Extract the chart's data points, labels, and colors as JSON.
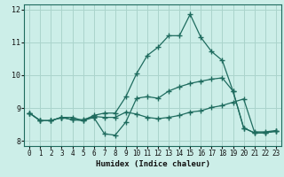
{
  "title": "",
  "xlabel": "Humidex (Indice chaleur)",
  "bg_color": "#cceee8",
  "line_color": "#1e6b5e",
  "grid_color": "#aad4cc",
  "xlim": [
    -0.5,
    23.5
  ],
  "ylim": [
    7.85,
    12.15
  ],
  "xticks": [
    0,
    1,
    2,
    3,
    4,
    5,
    6,
    7,
    8,
    9,
    10,
    11,
    12,
    13,
    14,
    15,
    16,
    17,
    18,
    19,
    20,
    21,
    22,
    23
  ],
  "yticks": [
    8,
    9,
    10,
    11,
    12
  ],
  "line1_x": [
    0,
    1,
    2,
    3,
    4,
    5,
    6,
    7,
    8,
    9,
    10,
    11,
    12,
    13,
    14,
    15,
    16,
    17,
    18,
    19,
    20,
    21,
    22,
    23
  ],
  "line1_y": [
    8.85,
    8.62,
    8.62,
    8.72,
    8.72,
    8.62,
    8.78,
    8.85,
    8.85,
    9.35,
    10.05,
    10.6,
    10.85,
    11.2,
    11.2,
    11.85,
    11.15,
    10.72,
    10.45,
    9.52,
    8.4,
    8.25,
    8.25,
    8.3
  ],
  "line2_x": [
    0,
    1,
    2,
    3,
    4,
    5,
    6,
    7,
    8,
    9,
    10,
    11,
    12,
    13,
    14,
    15,
    16,
    17,
    18,
    19,
    20,
    21,
    22,
    23
  ],
  "line2_y": [
    8.85,
    8.62,
    8.62,
    8.72,
    8.65,
    8.62,
    8.72,
    8.22,
    8.18,
    8.58,
    9.3,
    9.35,
    9.3,
    9.52,
    9.65,
    9.75,
    9.82,
    9.88,
    9.92,
    9.52,
    8.4,
    8.25,
    8.25,
    8.3
  ],
  "line3_x": [
    0,
    1,
    2,
    3,
    4,
    5,
    6,
    7,
    8,
    9,
    10,
    11,
    12,
    13,
    14,
    15,
    16,
    17,
    18,
    19,
    20,
    21,
    22,
    23
  ],
  "line3_y": [
    8.85,
    8.62,
    8.62,
    8.72,
    8.65,
    8.65,
    8.75,
    8.72,
    8.72,
    8.88,
    8.82,
    8.72,
    8.68,
    8.72,
    8.78,
    8.88,
    8.92,
    9.02,
    9.08,
    9.18,
    9.28,
    8.28,
    8.28,
    8.32
  ]
}
